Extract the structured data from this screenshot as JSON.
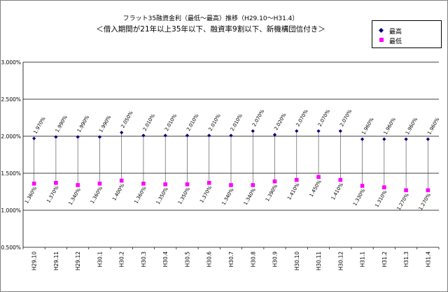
{
  "chart_data": {
    "type": "line",
    "title": "フラット35融資金利（最低～最高）推移（H29.10～H31.4）",
    "subtitle": "＜借入期間が21年以上35年以下、融資率9割以下、新機構団信付き＞",
    "categories": [
      "H29.10",
      "H29.11",
      "H29.12",
      "H30.1",
      "H30.2",
      "H30.3",
      "H30.4",
      "H30.5",
      "H30.6",
      "H30.7",
      "H30.8",
      "H30.9",
      "H30.10",
      "H30.11",
      "H30.12",
      "H31.1",
      "H31.2",
      "H31.3",
      "H31.4"
    ],
    "series": [
      {
        "name": "最高",
        "color": "#000080",
        "values": [
          1.97,
          1.99,
          1.99,
          1.99,
          2.05,
          2.01,
          2.01,
          2.01,
          2.01,
          2.01,
          2.07,
          2.02,
          2.07,
          2.07,
          2.07,
          1.96,
          1.96,
          1.96,
          1.96
        ],
        "labels": [
          "1.970%",
          "1.990%",
          "1.990%",
          "1.990%",
          "2.050%",
          "2.010%",
          "2.010%",
          "2.010%",
          "2.010%",
          "2.010%",
          "2.070%",
          "2.020%",
          "2.070%",
          "2.070%",
          "2.070%",
          "1.960%",
          "1.960%",
          "1.960%",
          "1.960%"
        ]
      },
      {
        "name": "最低",
        "color": "#ff00ff",
        "values": [
          1.36,
          1.37,
          1.34,
          1.36,
          1.4,
          1.36,
          1.35,
          1.35,
          1.37,
          1.34,
          1.34,
          1.39,
          1.41,
          1.45,
          1.41,
          1.33,
          1.31,
          1.27,
          1.27
        ],
        "labels": [
          "1.360%",
          "1.370%",
          "1.340%",
          "1.360%",
          "1.400%",
          "1.360%",
          "1.350%",
          "1.350%",
          "1.370%",
          "1.340%",
          "1.340%",
          "1.390%",
          "1.410%",
          "1.450%",
          "1.410%",
          "1.330%",
          "1.310%",
          "1.270%",
          "1.270%"
        ]
      }
    ],
    "yticks": [
      "3.000%",
      "2.500%",
      "2.000%",
      "1.500%",
      "1.000%",
      "0.500%"
    ],
    "ylim": [
      0.5,
      3.0
    ],
    "grid": true,
    "legend_position": "top-right"
  }
}
